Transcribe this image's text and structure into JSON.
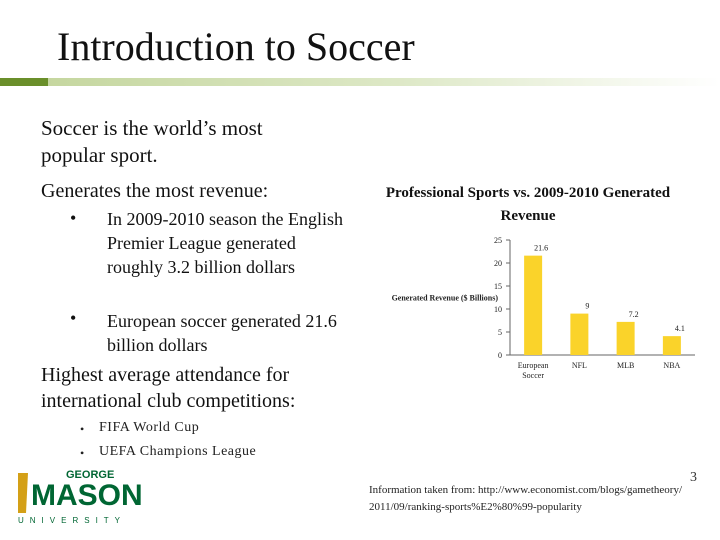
{
  "slide": {
    "title": "Introduction to Soccer",
    "bullets": {
      "p1": "Soccer is the world’s most popular sport.",
      "p2": "Generates the most revenue:",
      "sub1": "In 2009-2010 season the English Premier League generated roughly 3.2 billion dollars",
      "sub2": "European soccer generated 21.6 billion dollars",
      "p3": "Highest average attendance for international club competitions:",
      "small1": "FIFA World Cup",
      "small2": "UEFA Champions League"
    },
    "bullet_glyph": "•",
    "page_number": "3",
    "credit_line1": "Information taken from: http://www.economist.com/blogs/gametheory/",
    "credit_line2": "2011/09/ranking-sports%E2%80%99-popularity",
    "logo": {
      "word_top": "GEORGE",
      "word_main": "MASON",
      "word_bottom": "UNIVERSITY",
      "color": "#006633",
      "accent": "#d4a017"
    },
    "colors": {
      "rule_dark": "#6a8f2a",
      "rule_light": "#c2d49a",
      "bar": "#fad32a"
    }
  },
  "chart_data": {
    "type": "bar",
    "title": "Professional Sports vs. 2009-2010 Generated Revenue",
    "ylabel": "Generated Revenue ($ Billions)",
    "xlabel": "",
    "categories": [
      "European Soccer",
      "NFL",
      "MLB",
      "NBA"
    ],
    "category_lines": [
      [
        "European",
        "Soccer"
      ],
      [
        "NFL"
      ],
      [
        "MLB"
      ],
      [
        "NBA"
      ]
    ],
    "values": [
      21.6,
      9,
      7.2,
      4.1
    ],
    "value_labels": [
      "21.6",
      "9",
      "7.2",
      "4.1"
    ],
    "ylim": [
      0,
      25
    ],
    "yticks": [
      0,
      5,
      10,
      15,
      20,
      25
    ],
    "grid": false,
    "legend": "none"
  }
}
